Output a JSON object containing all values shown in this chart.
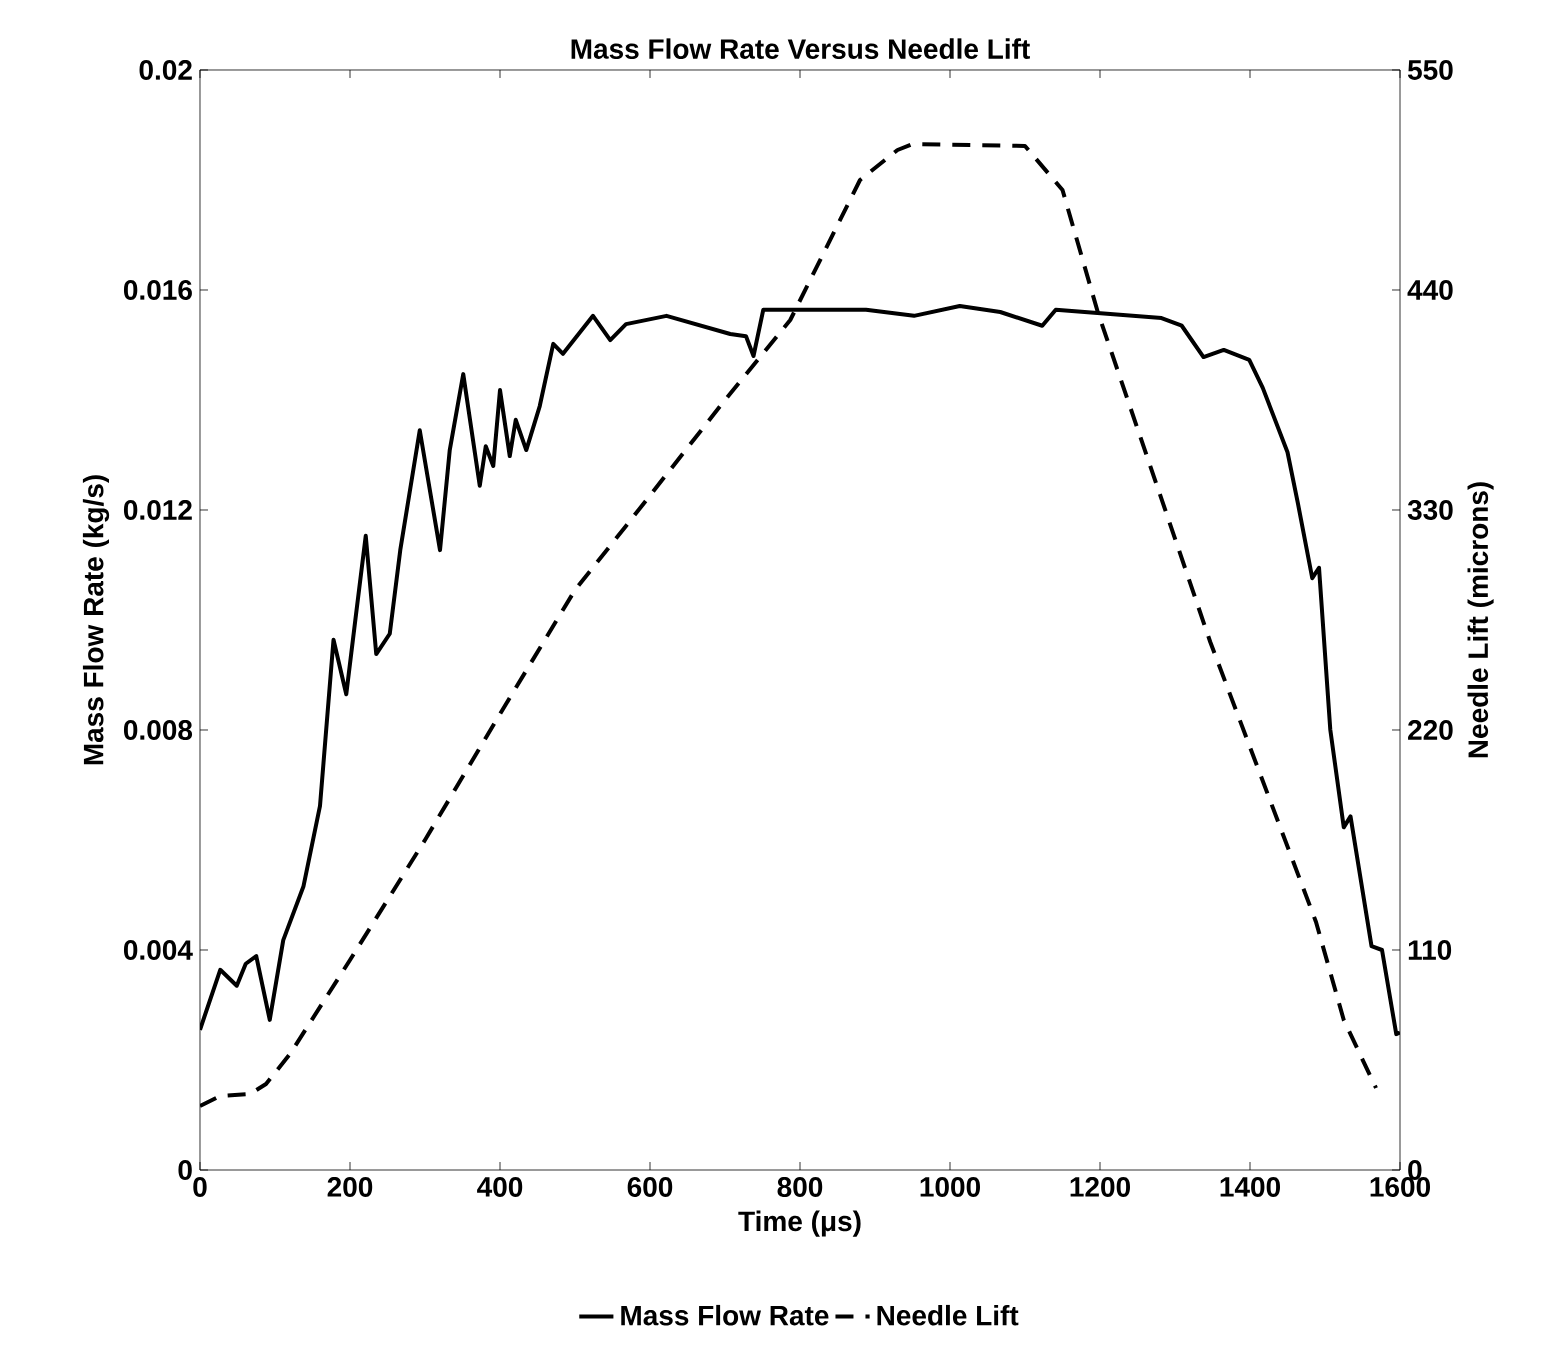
{
  "chart_data": {
    "type": "line",
    "title": "Mass Flow Rate Versus Needle Lift",
    "xlabel": "Time (μs)",
    "ylabel": "Mass Flow Rate (kg/s)",
    "y2label": "Needle Lift (microns)",
    "xlim": [
      0,
      1600
    ],
    "xticks": [
      0,
      200,
      400,
      600,
      800,
      1000,
      1200,
      1400,
      1600
    ],
    "ylim": [
      0,
      0.02
    ],
    "yticks": [
      0,
      0.004,
      0.008,
      0.012,
      0.016,
      0.02
    ],
    "y2lim": [
      0,
      550
    ],
    "y2ticks": [
      0,
      110,
      220,
      330,
      440,
      550
    ],
    "legend": "bottom",
    "grid": false,
    "series": [
      {
        "name": "Mass Flow Rate",
        "color": "#000000",
        "line_style": "solid",
        "x": [
          0,
          27,
          49,
          61,
          75,
          93,
          111,
          138,
          160,
          178,
          195,
          208,
          221,
          235,
          253,
          267,
          293,
          320,
          333,
          351,
          373,
          381,
          391,
          400,
          413,
          421,
          435,
          453,
          471,
          484,
          524,
          547,
          568,
          622,
          707,
          728,
          738,
          751,
          888,
          952,
          1013,
          1067,
          1123,
          1141,
          1282,
          1309,
          1338,
          1365,
          1399,
          1417,
          1450,
          1464,
          1483,
          1492,
          1507,
          1525,
          1534,
          1562,
          1576,
          1595,
          1600
        ],
        "values": [
          0.00255,
          0.00364,
          0.00335,
          0.00375,
          0.00389,
          0.00273,
          0.00418,
          0.00516,
          0.00662,
          0.00964,
          0.00865,
          0.0101,
          0.01153,
          0.00938,
          0.00975,
          0.01127,
          0.01345,
          0.01127,
          0.01309,
          0.01447,
          0.01244,
          0.01316,
          0.0128,
          0.01418,
          0.01298,
          0.01364,
          0.01309,
          0.01389,
          0.01502,
          0.01484,
          0.01553,
          0.01509,
          0.01538,
          0.01553,
          0.0152,
          0.01516,
          0.0148,
          0.01564,
          0.01564,
          0.01553,
          0.01571,
          0.0156,
          0.01535,
          0.01564,
          0.01549,
          0.01535,
          0.01478,
          0.01491,
          0.01473,
          0.01422,
          0.01305,
          0.01211,
          0.01076,
          0.01095,
          0.00801,
          0.00623,
          0.00643,
          0.00407,
          0.004,
          0.00247,
          0.0025
        ]
      },
      {
        "name": "Needle Lift",
        "color": "#000000",
        "line_style": "dashed",
        "axis": "y2",
        "x": [
          0,
          27,
          67,
          88,
          120,
          200,
          300,
          400,
          500,
          568,
          700,
          787,
          880,
          930,
          950,
          1100,
          1150,
          1197,
          1347,
          1488,
          1525,
          1568
        ],
        "values": [
          32,
          37,
          38,
          43,
          58,
          105,
          165,
          228,
          290,
          322,
          385,
          425,
          495,
          510,
          513,
          512,
          490,
          429,
          264,
          124,
          75,
          41
        ]
      }
    ]
  }
}
